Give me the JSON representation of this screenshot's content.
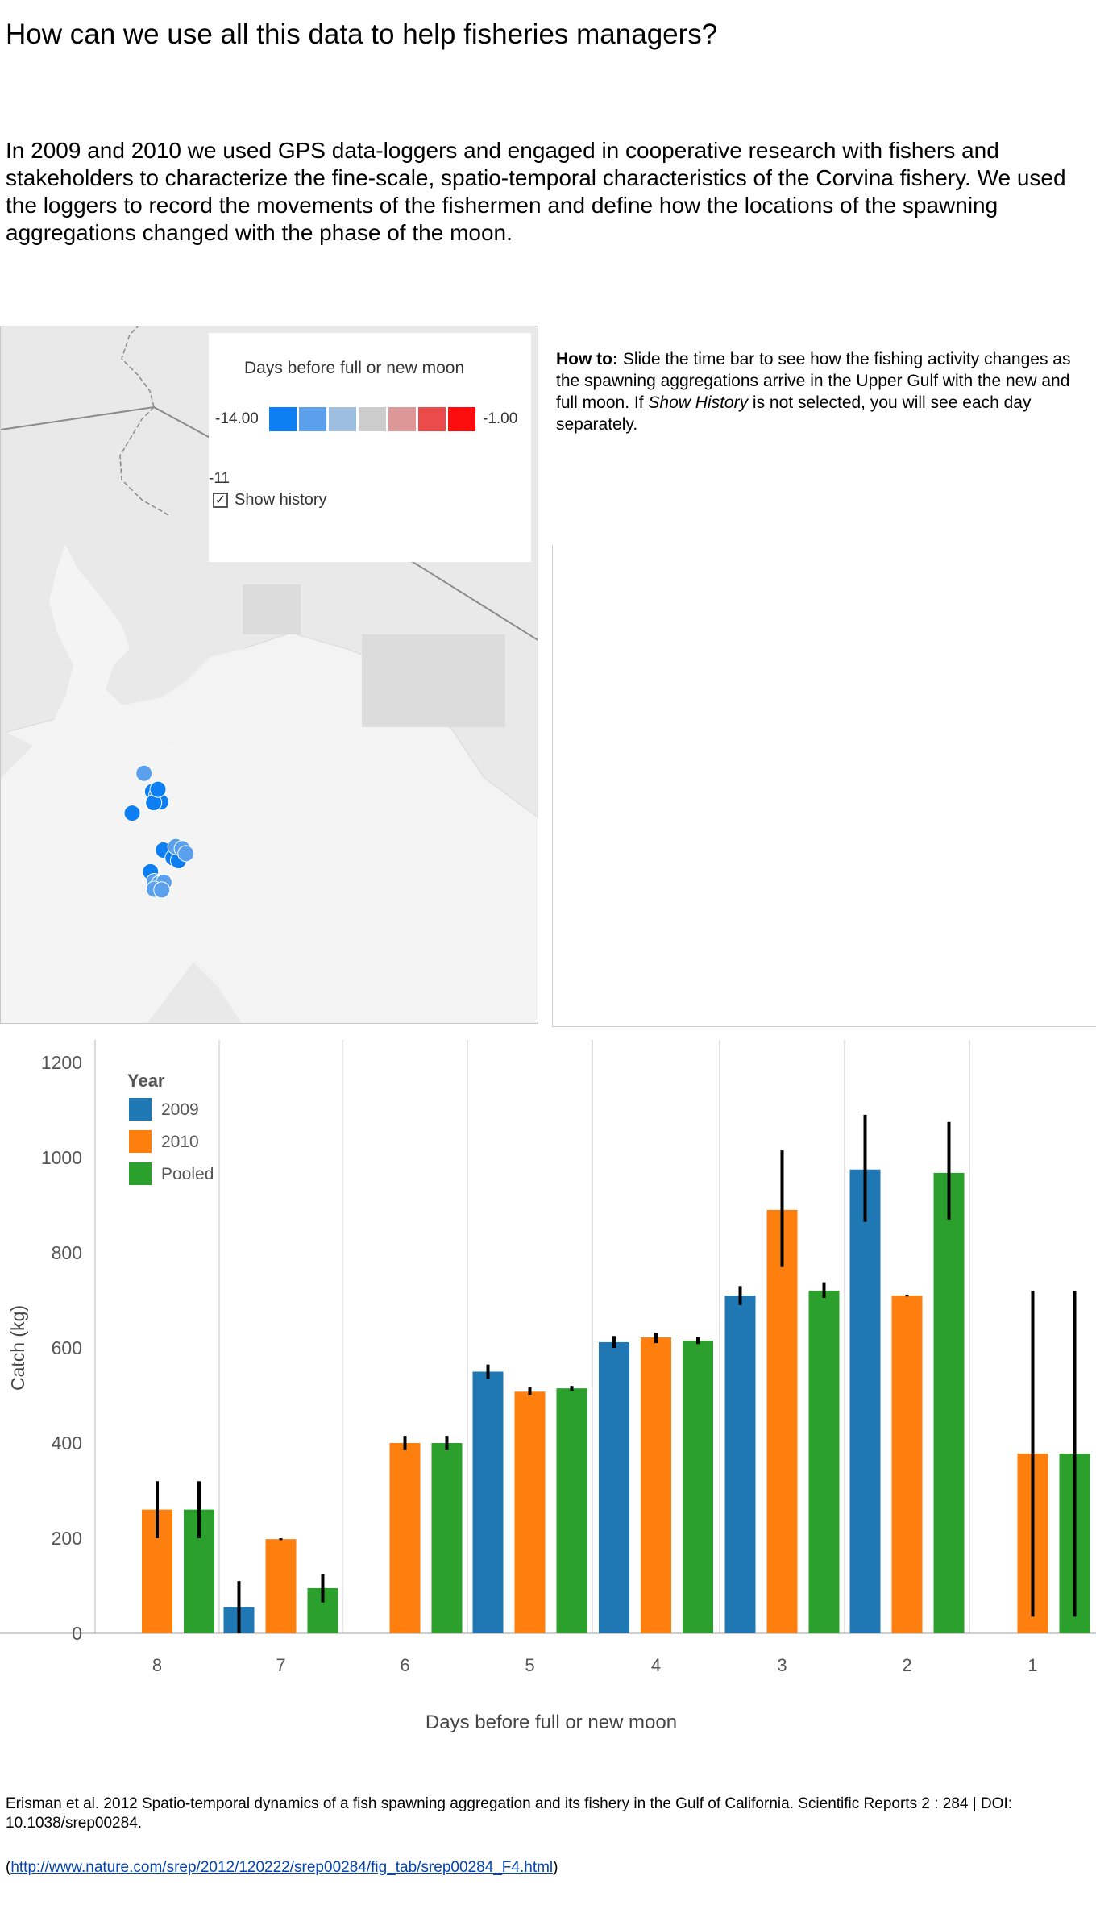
{
  "title": "How can we use all this data to help fisheries managers?",
  "intro": "In 2009 and 2010 we used GPS data-loggers and engaged in cooperative research with fishers and stakeholders to characterize the fine-scale, spatio-temporal characteristics of the Corvina fishery. We used the loggers to record the movements of the fishermen and define how the locations of the spawning aggregations changed with the phase of the moon.",
  "map": {
    "legend": {
      "title": "Days before full or new moon",
      "min_label": "-14.00",
      "max_label": "-1.00",
      "ramp_colors": [
        "#0d7ff2",
        "#5aa0ec",
        "#9ebedf",
        "#cccccc",
        "#dc9797",
        "#ec4b4b",
        "#fb0d0d"
      ]
    },
    "slider_value": "-11",
    "show_history": {
      "label": "Show history",
      "checked": true,
      "check_glyph": "✓"
    },
    "points": [
      {
        "lon": 0.266,
        "lat": 0.64,
        "value": -12
      },
      {
        "lon": 0.244,
        "lat": 0.697,
        "value": -14
      },
      {
        "lon": 0.282,
        "lat": 0.666,
        "value": -14
      },
      {
        "lon": 0.29,
        "lat": 0.671,
        "value": -14
      },
      {
        "lon": 0.297,
        "lat": 0.681,
        "value": -14
      },
      {
        "lon": 0.284,
        "lat": 0.682,
        "value": -14
      },
      {
        "lon": 0.292,
        "lat": 0.663,
        "value": -13
      },
      {
        "lon": 0.302,
        "lat": 0.75,
        "value": -14
      },
      {
        "lon": 0.32,
        "lat": 0.761,
        "value": -14
      },
      {
        "lon": 0.33,
        "lat": 0.765,
        "value": -14
      },
      {
        "lon": 0.325,
        "lat": 0.745,
        "value": -12
      },
      {
        "lon": 0.337,
        "lat": 0.748,
        "value": -12
      },
      {
        "lon": 0.344,
        "lat": 0.755,
        "value": -12
      },
      {
        "lon": 0.278,
        "lat": 0.781,
        "value": -14
      },
      {
        "lon": 0.285,
        "lat": 0.795,
        "value": -12
      },
      {
        "lon": 0.294,
        "lat": 0.798,
        "value": -12
      },
      {
        "lon": 0.303,
        "lat": 0.796,
        "value": -12
      },
      {
        "lon": 0.285,
        "lat": 0.806,
        "value": -12
      },
      {
        "lon": 0.299,
        "lat": 0.807,
        "value": -12
      }
    ]
  },
  "howto": {
    "lead": "How to:",
    "text_part1": " Slide the time bar to see how the fishing activity changes as the spawning aggregations arrive in the Upper Gulf with the new and full moon. If ",
    "text_italic": "Show History",
    "text_part2": " is not selected, you will see each day separately."
  },
  "chart_data": {
    "type": "bar",
    "xlabel": "Days before full or new moon",
    "ylabel": "Catch (kg)",
    "ylim": [
      0,
      1200
    ],
    "yticks": [
      0,
      200,
      400,
      600,
      800,
      1000,
      1200
    ],
    "categories": [
      "8",
      "7",
      "6",
      "5",
      "4",
      "3",
      "2",
      "1"
    ],
    "legend": {
      "title": "Year",
      "placement": "top-left"
    },
    "series": [
      {
        "name": "2009",
        "color": "#1f77b4",
        "values": [
          null,
          55,
          null,
          550,
          612,
          710,
          975,
          null
        ],
        "err_low": [
          null,
          0,
          null,
          535,
          600,
          690,
          865,
          null
        ],
        "err_high": [
          null,
          110,
          null,
          565,
          625,
          730,
          1090,
          null
        ]
      },
      {
        "name": "2010",
        "color": "#ff7f0e",
        "values": [
          260,
          198,
          400,
          508,
          622,
          890,
          710,
          378
        ],
        "err_low": [
          200,
          196,
          385,
          500,
          610,
          770,
          708,
          35
        ],
        "err_high": [
          320,
          200,
          415,
          518,
          632,
          1015,
          712,
          720
        ]
      },
      {
        "name": "Pooled",
        "color": "#2ca02c",
        "values": [
          260,
          95,
          400,
          515,
          615,
          720,
          968,
          378
        ],
        "err_low": [
          200,
          65,
          385,
          510,
          608,
          705,
          870,
          35
        ],
        "err_high": [
          320,
          125,
          415,
          520,
          622,
          738,
          1075,
          720
        ]
      }
    ],
    "grid": "vertical separators between categories"
  },
  "citation": "Erisman et al. 2012 Spatio-temporal dynamics of a fish spawning aggregation and its fishery in the Gulf of California. Scientific Reports 2 : 284 | DOI: 10.1038/srep00284.",
  "source": {
    "open": "(",
    "url": "http://www.nature.com/srep/2012/120222/srep00284/fig_tab/srep00284_F4.html",
    "close": ")"
  }
}
